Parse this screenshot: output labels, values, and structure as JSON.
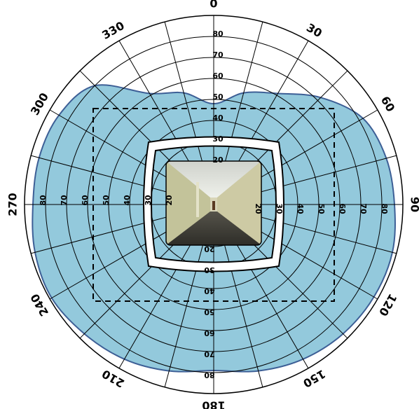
{
  "chart_data": {
    "type": "polar",
    "angle_ticks": [
      0,
      30,
      60,
      90,
      120,
      150,
      180,
      210,
      240,
      270,
      300,
      330
    ],
    "rlim": [
      0,
      90
    ],
    "rticks": [
      20,
      30,
      40,
      50,
      60,
      70,
      80
    ],
    "rings": [
      10,
      20,
      30,
      40,
      50,
      60,
      70,
      80,
      90
    ],
    "spoke_step": 15,
    "field": {
      "color": "#93c9dc",
      "edge": "#3d5f96",
      "angles": [
        0,
        15,
        30,
        45,
        60,
        75,
        90,
        105,
        120,
        135,
        150,
        165,
        180,
        195,
        210,
        225,
        240,
        255,
        270,
        285,
        300,
        315,
        330,
        345
      ],
      "values": [
        48,
        55,
        61,
        72,
        82,
        85,
        86,
        88,
        88,
        87,
        85,
        82,
        79,
        82,
        85,
        87,
        89,
        88,
        86,
        86,
        85,
        80,
        61,
        55
      ]
    }
  }
}
